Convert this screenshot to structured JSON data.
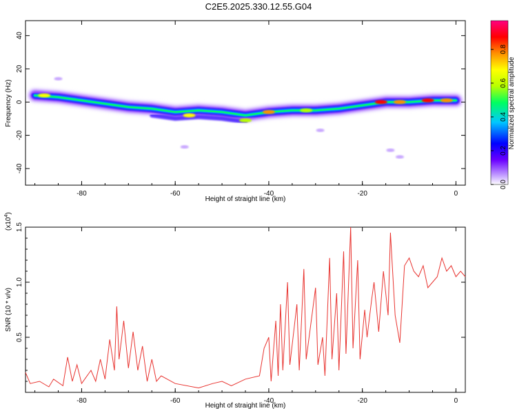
{
  "title": "C2E5.2025.330.12.55.G04",
  "colors": {
    "snr_line": "#e8322e",
    "axes": "#000000"
  },
  "chart_data": [
    {
      "type": "heatmap",
      "title": "C2E5.2025.330.12.55.G04",
      "xlabel": "Height of straight line (km)",
      "ylabel": "Frequency (Hz)",
      "xlim": [
        -92,
        2
      ],
      "ylim": [
        -50,
        49
      ],
      "xticks": [
        -80,
        -60,
        -40,
        -20,
        0
      ],
      "yticks": [
        40,
        20,
        0,
        -20,
        -40
      ],
      "colorbar": {
        "label": "Normalized spectral amplitude",
        "range": [
          0,
          0.97
        ],
        "ticks": [
          "0.0",
          "0.2",
          "0.4",
          "0.6",
          "0.8"
        ],
        "colormap": [
          "#ffffff",
          "#c8a8ff",
          "#6a00ff",
          "#0000ff",
          "#00c8ff",
          "#00ff60",
          "#b8ff00",
          "#ffff00",
          "#ff9000",
          "#ff0000",
          "#ff0080"
        ]
      },
      "ridge": [
        {
          "x": -90,
          "y": 4
        },
        {
          "x": -85,
          "y": 3
        },
        {
          "x": -80,
          "y": 1
        },
        {
          "x": -75,
          "y": -1
        },
        {
          "x": -70,
          "y": -3
        },
        {
          "x": -65,
          "y": -4
        },
        {
          "x": -60,
          "y": -6
        },
        {
          "x": -55,
          "y": -5
        },
        {
          "x": -50,
          "y": -6
        },
        {
          "x": -45,
          "y": -8
        },
        {
          "x": -40,
          "y": -6
        },
        {
          "x": -35,
          "y": -5
        },
        {
          "x": -30,
          "y": -5
        },
        {
          "x": -25,
          "y": -4
        },
        {
          "x": -20,
          "y": -2
        },
        {
          "x": -15,
          "y": 0
        },
        {
          "x": -10,
          "y": 0
        },
        {
          "x": -5,
          "y": 1
        },
        {
          "x": 0,
          "y": 1
        }
      ],
      "hot_spots": [
        {
          "x": -88,
          "y": 4,
          "amp": 0.75
        },
        {
          "x": -57,
          "y": -8,
          "amp": 0.7
        },
        {
          "x": -45,
          "y": -11,
          "amp": 0.6
        },
        {
          "x": -40,
          "y": -6,
          "amp": 0.85
        },
        {
          "x": -32,
          "y": -5,
          "amp": 0.6
        },
        {
          "x": -16,
          "y": 0,
          "amp": 0.9
        },
        {
          "x": -12,
          "y": 0,
          "amp": 0.85
        },
        {
          "x": -6,
          "y": 1,
          "amp": 0.95
        },
        {
          "x": -2,
          "y": 1,
          "amp": 0.8
        }
      ],
      "faint_spots": [
        {
          "x": -29,
          "y": -17
        },
        {
          "x": -14,
          "y": -29
        },
        {
          "x": -12,
          "y": -33
        },
        {
          "x": -58,
          "y": -27
        },
        {
          "x": -85,
          "y": 14
        }
      ]
    },
    {
      "type": "line",
      "xlabel": "Height of straight line (km)",
      "ylabel": "SNR (10 * v/v)",
      "y_multiplier_label": "(x10",
      "y_multiplier_exp": "4",
      "y_multiplier_close": ")",
      "xlim": [
        -92,
        2
      ],
      "ylim": [
        0,
        1.5
      ],
      "xticks": [
        -80,
        -60,
        -40,
        -20,
        0
      ],
      "yticks": [
        "0.5",
        "1.0",
        "1.5"
      ],
      "series": [
        {
          "points": [
            [
              -92,
              0.18
            ],
            [
              -91,
              0.08
            ],
            [
              -89,
              0.1
            ],
            [
              -87,
              0.05
            ],
            [
              -86,
              0.12
            ],
            [
              -84,
              0.06
            ],
            [
              -83,
              0.32
            ],
            [
              -82,
              0.1
            ],
            [
              -81,
              0.25
            ],
            [
              -80,
              0.08
            ],
            [
              -78,
              0.2
            ],
            [
              -77,
              0.1
            ],
            [
              -76,
              0.3
            ],
            [
              -75,
              0.12
            ],
            [
              -74,
              0.48
            ],
            [
              -73,
              0.2
            ],
            [
              -72.5,
              0.78
            ],
            [
              -72,
              0.3
            ],
            [
              -71,
              0.65
            ],
            [
              -70,
              0.22
            ],
            [
              -69,
              0.55
            ],
            [
              -68,
              0.2
            ],
            [
              -67,
              0.42
            ],
            [
              -66,
              0.1
            ],
            [
              -65,
              0.3
            ],
            [
              -64,
              0.1
            ],
            [
              -63,
              0.15
            ],
            [
              -60,
              0.08
            ],
            [
              -55,
              0.04
            ],
            [
              -52,
              0.08
            ],
            [
              -50,
              0.1
            ],
            [
              -48,
              0.06
            ],
            [
              -45,
              0.12
            ],
            [
              -42,
              0.15
            ],
            [
              -41,
              0.4
            ],
            [
              -40,
              0.5
            ],
            [
              -39.5,
              0.1
            ],
            [
              -38.5,
              0.65
            ],
            [
              -38,
              0.15
            ],
            [
              -37.5,
              0.8
            ],
            [
              -37,
              0.2
            ],
            [
              -36,
              1.0
            ],
            [
              -35.5,
              0.25
            ],
            [
              -34,
              0.8
            ],
            [
              -33.5,
              0.2
            ],
            [
              -32.5,
              1.12
            ],
            [
              -32,
              0.3
            ],
            [
              -30,
              0.95
            ],
            [
              -29.5,
              0.25
            ],
            [
              -28.5,
              0.5
            ],
            [
              -28,
              0.15
            ],
            [
              -27,
              1.22
            ],
            [
              -26.5,
              0.3
            ],
            [
              -25.5,
              0.9
            ],
            [
              -25,
              0.2
            ],
            [
              -24,
              1.28
            ],
            [
              -23.5,
              0.35
            ],
            [
              -22.5,
              1.5
            ],
            [
              -22,
              0.4
            ],
            [
              -21,
              1.2
            ],
            [
              -20.5,
              0.3
            ],
            [
              -19.5,
              0.75
            ],
            [
              -19,
              0.5
            ],
            [
              -18,
              0.85
            ],
            [
              -17.5,
              1.0
            ],
            [
              -16.5,
              0.55
            ],
            [
              -15.5,
              1.1
            ],
            [
              -15,
              0.9
            ],
            [
              -14.5,
              0.7
            ],
            [
              -14,
              1.45
            ],
            [
              -13,
              0.7
            ],
            [
              -12,
              0.45
            ],
            [
              -11,
              1.15
            ],
            [
              -10,
              1.22
            ],
            [
              -9,
              1.1
            ],
            [
              -8,
              1.05
            ],
            [
              -7,
              1.15
            ],
            [
              -6,
              0.95
            ],
            [
              -5,
              1.0
            ],
            [
              -4,
              1.05
            ],
            [
              -3,
              1.22
            ],
            [
              -2,
              1.1
            ],
            [
              -1,
              1.15
            ],
            [
              0,
              1.05
            ],
            [
              1,
              1.1
            ],
            [
              2,
              1.05
            ]
          ]
        }
      ]
    }
  ]
}
